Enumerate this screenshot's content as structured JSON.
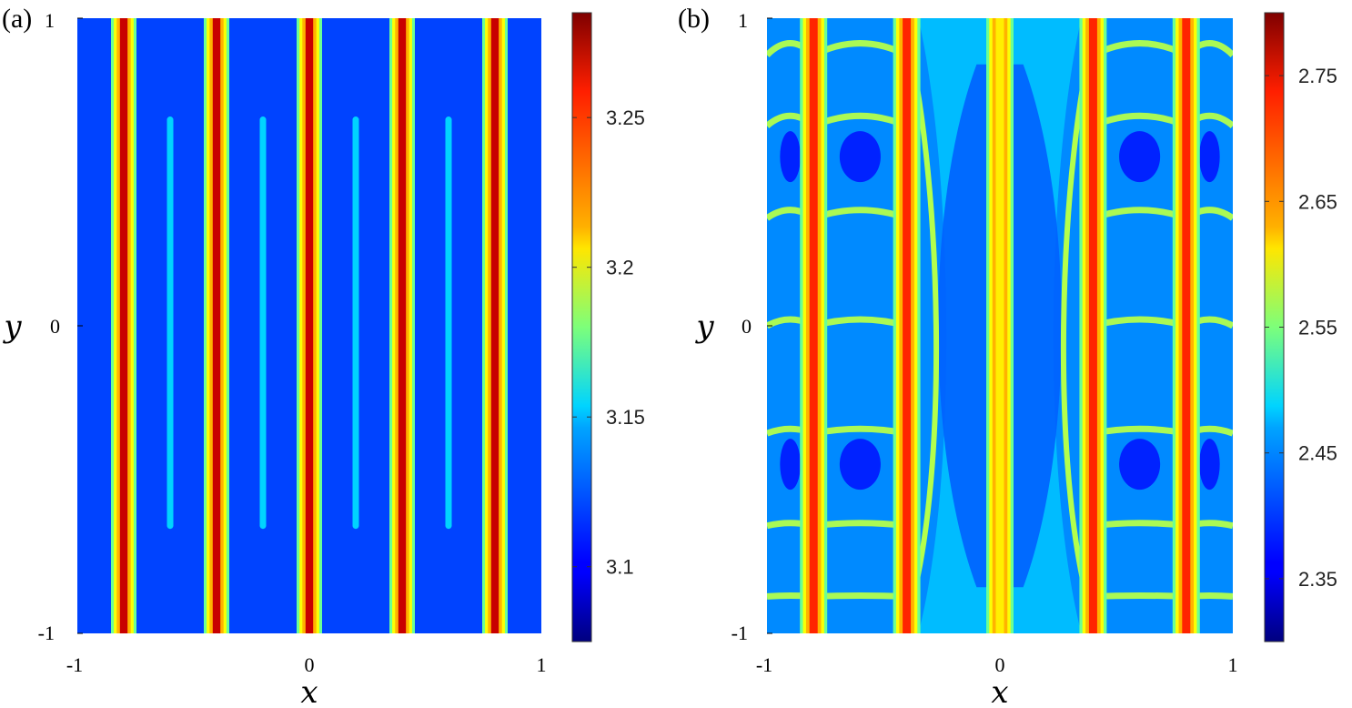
{
  "chart_data": [
    {
      "type": "heatmap",
      "panel_label": "(a)",
      "xlabel": "x",
      "ylabel": "y",
      "xlim": [
        -1,
        1
      ],
      "ylim": [
        -1,
        1
      ],
      "x_ticks": [
        "-1",
        "0",
        "1"
      ],
      "y_ticks": [
        "1",
        "0",
        "-1"
      ],
      "colormap": "jet",
      "colorbar": {
        "range": [
          3.075,
          3.285
        ],
        "ticks": [
          3.25,
          3.2,
          3.15,
          3.1
        ],
        "tick_labels": [
          "3.25",
          "3.2",
          "3.15",
          "3.1"
        ]
      },
      "background_value": 3.115,
      "vertical_stripes": [
        {
          "x": -0.8,
          "peak_value": 3.27
        },
        {
          "x": -0.4,
          "peak_value": 3.27
        },
        {
          "x": 0.0,
          "peak_value": 3.27
        },
        {
          "x": 0.4,
          "peak_value": 3.27
        },
        {
          "x": 0.8,
          "peak_value": 3.27
        }
      ],
      "vertical_segments": [
        {
          "x": -0.6,
          "y_range": [
            -0.65,
            0.67
          ],
          "value": 3.145
        },
        {
          "x": -0.2,
          "y_range": [
            -0.65,
            0.67
          ],
          "value": 3.145
        },
        {
          "x": 0.2,
          "y_range": [
            -0.65,
            0.67
          ],
          "value": 3.145
        },
        {
          "x": 0.6,
          "y_range": [
            -0.65,
            0.67
          ],
          "value": 3.145
        }
      ]
    },
    {
      "type": "heatmap",
      "panel_label": "(b)",
      "xlabel": "x",
      "ylabel": "y",
      "xlim": [
        -1,
        1
      ],
      "ylim": [
        -1,
        1
      ],
      "x_ticks": [
        "-1",
        "0",
        "1"
      ],
      "y_ticks": [
        "1",
        "0",
        "-1"
      ],
      "colormap": "jet",
      "colorbar": {
        "range": [
          2.3,
          2.8
        ],
        "ticks": [
          2.75,
          2.65,
          2.55,
          2.45,
          2.35
        ],
        "tick_labels": [
          "2.75",
          "2.65",
          "2.55",
          "2.45",
          "2.35"
        ]
      },
      "background_value": 2.43,
      "vertical_stripes": [
        {
          "x": -0.8,
          "peak_value": 2.72
        },
        {
          "x": -0.4,
          "peak_value": 2.72
        },
        {
          "x": 0.0,
          "peak_value": 2.62
        },
        {
          "x": 0.4,
          "peak_value": 2.72
        },
        {
          "x": 0.8,
          "peak_value": 2.72
        }
      ]
    }
  ]
}
